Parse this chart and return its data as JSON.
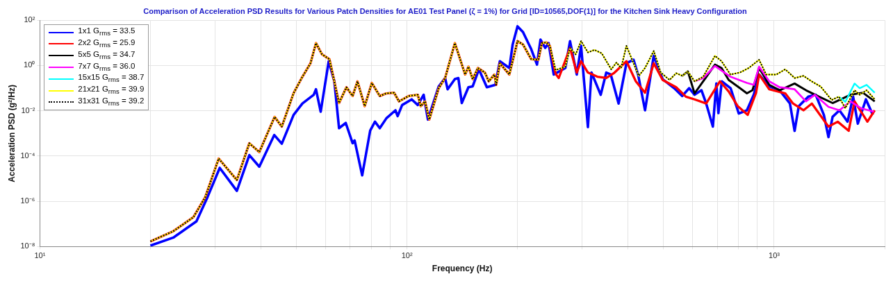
{
  "chart_data": {
    "type": "line",
    "title": "Comparison of Acceleration PSD Results for Various Patch Densities for AE01 Test Panel (ζ = 1%) for Grid [ID=10565,DOF(1)] for the Kitchen Sink Heavy Configuration",
    "xlabel": "Frequency (Hz)",
    "ylabel": "Acceleration PSD (g²/Hz)",
    "log": "xy",
    "grid": true,
    "legend": "top left",
    "xlim": [
      10,
      2000
    ],
    "xticks": [
      {
        "value": 10,
        "label": "10¹"
      },
      {
        "value": 20,
        "label": null
      },
      {
        "value": 30,
        "label": null
      },
      {
        "value": 40,
        "label": null
      },
      {
        "value": 50,
        "label": null
      },
      {
        "value": 60,
        "label": null
      },
      {
        "value": 70,
        "label": null
      },
      {
        "value": 80,
        "label": null
      },
      {
        "value": 90,
        "label": null
      },
      {
        "value": 100,
        "label": "10²"
      },
      {
        "value": 200,
        "label": null
      },
      {
        "value": 300,
        "label": null
      },
      {
        "value": 400,
        "label": null
      },
      {
        "value": 500,
        "label": null
      },
      {
        "value": 600,
        "label": null
      },
      {
        "value": 700,
        "label": null
      },
      {
        "value": 800,
        "label": null
      },
      {
        "value": 900,
        "label": null
      },
      {
        "value": 1000,
        "label": "10³"
      },
      {
        "value": 2000,
        "label": null
      }
    ],
    "ylim": [
      1e-08,
      100
    ],
    "yticks": [
      {
        "value": 1e-08,
        "label": "10⁻⁸"
      },
      {
        "value": 1e-06,
        "label": "10⁻⁶"
      },
      {
        "value": 0.0001,
        "label": "10⁻⁴"
      },
      {
        "value": 0.01,
        "label": "10⁻²"
      },
      {
        "value": 1,
        "label": "10⁰"
      },
      {
        "value": 100,
        "label": "10²"
      }
    ],
    "series": [
      {
        "name": "1x1 G$_{rms}$ = 33.5",
        "color": "#0000ff",
        "x": [
          20,
          23.1,
          26.7,
          28.6,
          30.9,
          34.4,
          37.2,
          39.6,
          43.5,
          45.6,
          49.1,
          51.9,
          55.7,
          56.5,
          58.2,
          61.2,
          63.4,
          65.3,
          68.1,
          71.1,
          72,
          75.5,
          79.4,
          81.8,
          84.3,
          87.9,
          93,
          94.3,
          97,
          103,
          107,
          111,
          114,
          122,
          127,
          129,
          135,
          138,
          141,
          147,
          151,
          157,
          165,
          174,
          179,
          190,
          194,
          200,
          207,
          218,
          226,
          231,
          238,
          243,
          251,
          270,
          278,
          290,
          298,
          311,
          318,
          337,
          349,
          359,
          377,
          396,
          414,
          426,
          445,
          470,
          497,
          534,
          562,
          587,
          607,
          634,
          653,
          681,
          696,
          705,
          720,
          761,
          801,
          843,
          880,
          910,
          970,
          1035,
          1104,
          1137,
          1167,
          1239,
          1298,
          1366,
          1406,
          1443,
          1506,
          1585,
          1641,
          1690,
          1778,
          1857
        ],
        "values": [
          1.1e-08,
          2.5e-08,
          1.3e-07,
          1.5e-06,
          3e-05,
          2.9e-06,
          0.00011,
          3.4e-05,
          0.00085,
          0.00035,
          0.0066,
          0.021,
          0.051,
          0.089,
          0.0091,
          1.55,
          0.2,
          0.0017,
          0.0029,
          0.00037,
          0.00049,
          1.4e-05,
          0.00135,
          0.0033,
          0.0017,
          0.0047,
          0.0105,
          0.0058,
          0.018,
          0.032,
          0.018,
          0.051,
          0.0041,
          0.12,
          0.28,
          0.089,
          0.25,
          0.28,
          0.022,
          0.11,
          0.12,
          0.68,
          0.11,
          0.14,
          1.55,
          0.78,
          8.5,
          54,
          30,
          5.2,
          1.1,
          14,
          6,
          9.8,
          0.4,
          0.78,
          12,
          0.4,
          7.4,
          0.0019,
          0.49,
          0.051,
          0.49,
          0.4,
          0.021,
          1.26,
          1.8,
          0.4,
          0.0105,
          2.7,
          0.25,
          0.1,
          0.045,
          0.1,
          0.051,
          0.081,
          0.021,
          0.002,
          0.16,
          0.0079,
          0.2,
          0.1,
          0.0076,
          0.0105,
          0.051,
          0.4,
          0.12,
          0.081,
          0.021,
          0.0013,
          0.016,
          0.042,
          0.051,
          0.0066,
          0.00069,
          0.0054,
          0.0105,
          0.0033,
          0.042,
          0.0027,
          0.032,
          0.0066
        ]
      },
      {
        "name": "2x2 G$_{rms}$ = 25.9",
        "color": "#ff0000",
        "x": [
          20,
          23.1,
          26.2,
          28.2,
          30.7,
          34.4,
          37.2,
          39.6,
          43.6,
          45.6,
          49.1,
          51.9,
          54.6,
          56.5,
          58.7,
          61.5,
          65.3,
          68.4,
          71.1,
          73.3,
          76.7,
          80.2,
          84.3,
          87.9,
          92.2,
          95.1,
          101,
          107,
          109,
          112,
          115,
          122,
          127,
          135,
          144,
          147,
          151,
          156,
          163,
          167,
          173,
          175,
          179,
          190,
          200,
          207,
          218,
          228,
          233,
          240,
          245,
          254,
          259,
          278,
          290,
          298,
          311,
          330,
          349,
          366,
          396,
          420,
          445,
          470,
          497,
          541,
          575,
          607,
          653,
          712,
          752,
          796,
          847,
          893,
          910,
          970,
          1072,
          1126,
          1202,
          1267,
          1406,
          1490,
          1596,
          1656,
          1795,
          1879
        ],
        "values": [
          1.7e-08,
          4.8e-08,
          2e-07,
          1.5e-06,
          7.8e-05,
          8.7e-06,
          0.00037,
          0.00015,
          0.0054,
          0.002,
          0.06,
          0.32,
          1.26,
          9.8,
          3.1,
          1.9,
          0.022,
          0.11,
          0.045,
          0.2,
          0.016,
          0.17,
          0.045,
          0.059,
          0.063,
          0.026,
          0.045,
          0.051,
          0.016,
          0.026,
          0.0041,
          0.1,
          0.28,
          9.8,
          0.4,
          0.89,
          0.25,
          0.78,
          0.49,
          0.2,
          0.4,
          0.14,
          1.26,
          0.4,
          12,
          8.5,
          1.9,
          1.8,
          9.8,
          10.5,
          7.4,
          0.43,
          0.28,
          6,
          0.49,
          1.55,
          0.49,
          0.32,
          0.28,
          0.46,
          1.55,
          0.2,
          0.063,
          1.26,
          0.23,
          0.11,
          0.042,
          0.032,
          0.021,
          0.2,
          0.071,
          0.016,
          0.0066,
          0.063,
          0.4,
          0.089,
          0.059,
          0.021,
          0.0105,
          0.021,
          0.002,
          0.0033,
          0.0013,
          0.026,
          0.0033,
          0.0105
        ]
      },
      {
        "name": "5x5 G$_{rms}$ = 34.7",
        "color": "#000000",
        "x": [
          562,
          582,
          607,
          641,
          690,
          719,
          752,
          807,
          843,
          873,
          910,
          970,
          1035,
          1137,
          1221,
          1326,
          1443,
          1520,
          1614,
          1745,
          1879
        ],
        "values": [
          0.35,
          0.55,
          0.059,
          0.2,
          1.1,
          0.78,
          0.23,
          0.1,
          0.059,
          0.081,
          0.78,
          0.14,
          0.081,
          0.16,
          0.081,
          0.042,
          0.022,
          0.032,
          0.051,
          0.063,
          0.026
        ]
      },
      {
        "name": "7x7 G$_{rms}$ = 36.0",
        "color": "#ff00ff",
        "x": [
          607,
          641,
          690,
          760,
          843,
          880,
          910,
          970,
          1035,
          1137,
          1221,
          1291,
          1406,
          1506,
          1614,
          1723,
          1870
        ],
        "values": [
          0.2,
          0.28,
          0.95,
          0.32,
          0.17,
          0.14,
          0.89,
          0.2,
          0.11,
          0.089,
          0.026,
          0.051,
          0.015,
          0.0105,
          0.026,
          0.013,
          0.0091
        ]
      },
      {
        "name": "15x15 G$_{rms}$ = 38.7",
        "color": "#00ffff",
        "x": [
          1500,
          1563,
          1656,
          1710,
          1786,
          1879
        ],
        "values": [
          0.042,
          0.025,
          0.16,
          0.1,
          0.14,
          0.063
        ]
      },
      {
        "name": "21x21 G$_{rms}$ = 39.9",
        "color": "#ffff00",
        "x": [
          20,
          23.1,
          26.2,
          28.2,
          30.7,
          34.4,
          37.2,
          39.6,
          43.6,
          45.6,
          49.1,
          51.9,
          54.6,
          56.5,
          58.7,
          61.5,
          65.3,
          68.4,
          71.1,
          73.3,
          76.7,
          80.2,
          84.3,
          87.9,
          92.2,
          95.1,
          101,
          107,
          109,
          112,
          115,
          122,
          127,
          135,
          144,
          147,
          151,
          156,
          163,
          167,
          173,
          175,
          179,
          190,
          200,
          207,
          218,
          228,
          233,
          240,
          245,
          254,
          270,
          278,
          288,
          298,
          311,
          324,
          339,
          360,
          372,
          383,
          396,
          414,
          428,
          445,
          470,
          491,
          519,
          541,
          562,
          582,
          607,
          641,
          690,
          719,
          760,
          807,
          853,
          910,
          951,
          1014,
          1072,
          1138,
          1202,
          1265,
          1337,
          1435,
          1500,
          1563,
          1656,
          1710,
          1786,
          1879
        ],
        "values": [
          1.7e-08,
          4.8e-08,
          2e-07,
          1.5e-06,
          7.8e-05,
          8.7e-06,
          0.00037,
          0.00015,
          0.0054,
          0.002,
          0.06,
          0.32,
          1.26,
          9.8,
          3.1,
          1.9,
          0.022,
          0.11,
          0.045,
          0.2,
          0.016,
          0.17,
          0.045,
          0.059,
          0.063,
          0.026,
          0.045,
          0.051,
          0.016,
          0.026,
          0.0041,
          0.1,
          0.28,
          9.8,
          0.4,
          0.89,
          0.25,
          0.78,
          0.49,
          0.2,
          0.4,
          0.14,
          1.26,
          0.4,
          12,
          8.5,
          1.9,
          1.8,
          9.8,
          10.5,
          7.4,
          0.63,
          0.89,
          6,
          3.1,
          12,
          3.8,
          4.9,
          3.5,
          0.68,
          1.35,
          0.78,
          7.4,
          1.26,
          0.35,
          0.78,
          4.4,
          0.49,
          0.23,
          0.46,
          0.35,
          0.55,
          0.2,
          0.32,
          2.7,
          1.55,
          0.4,
          0.49,
          0.78,
          1.8,
          0.4,
          0.4,
          0.68,
          0.28,
          0.35,
          0.2,
          0.12,
          0.03,
          0.042,
          0.013,
          0.081,
          0.051,
          0.081,
          0.032
        ]
      },
      {
        "name": "31x31 G$_{rms}$ = 39.2",
        "color": "#000000",
        "line_style": "dotted",
        "x": [
          20,
          23.1,
          26.2,
          28.2,
          30.7,
          34.4,
          37.2,
          39.6,
          43.6,
          45.6,
          49.1,
          51.9,
          54.6,
          56.5,
          58.7,
          61.5,
          65.3,
          68.4,
          71.1,
          73.3,
          76.7,
          80.2,
          84.3,
          87.9,
          92.2,
          95.1,
          101,
          107,
          109,
          112,
          115,
          122,
          127,
          135,
          144,
          147,
          151,
          156,
          163,
          167,
          173,
          175,
          179,
          190,
          200,
          207,
          218,
          228,
          233,
          240,
          245,
          254,
          270,
          278,
          288,
          298,
          311,
          324,
          339,
          360,
          372,
          383,
          396,
          414,
          428,
          445,
          470,
          491,
          519,
          541,
          562,
          582,
          607,
          641,
          690,
          719,
          760,
          807,
          853,
          910,
          951,
          1014,
          1072,
          1138,
          1202,
          1265,
          1337,
          1435,
          1500,
          1563,
          1656,
          1710,
          1786,
          1879
        ],
        "values": [
          1.7e-08,
          4.8e-08,
          2e-07,
          1.5e-06,
          7.8e-05,
          8.7e-06,
          0.00037,
          0.00015,
          0.0054,
          0.002,
          0.06,
          0.32,
          1.26,
          9.8,
          3.1,
          1.9,
          0.022,
          0.11,
          0.045,
          0.2,
          0.016,
          0.17,
          0.045,
          0.059,
          0.063,
          0.026,
          0.045,
          0.051,
          0.016,
          0.026,
          0.0041,
          0.1,
          0.28,
          9.8,
          0.4,
          0.89,
          0.25,
          0.78,
          0.49,
          0.2,
          0.4,
          0.14,
          1.26,
          0.4,
          12,
          8.5,
          1.9,
          1.8,
          9.8,
          10.5,
          7.4,
          0.63,
          0.89,
          6,
          3.1,
          12,
          3.8,
          4.9,
          3.5,
          0.68,
          1.35,
          0.78,
          7.4,
          1.26,
          0.35,
          0.78,
          4.4,
          0.49,
          0.23,
          0.46,
          0.35,
          0.55,
          0.2,
          0.32,
          2.7,
          1.55,
          0.4,
          0.49,
          0.78,
          1.8,
          0.4,
          0.4,
          0.68,
          0.28,
          0.35,
          0.2,
          0.12,
          0.03,
          0.042,
          0.013,
          0.081,
          0.051,
          0.081,
          0.032
        ]
      }
    ]
  }
}
